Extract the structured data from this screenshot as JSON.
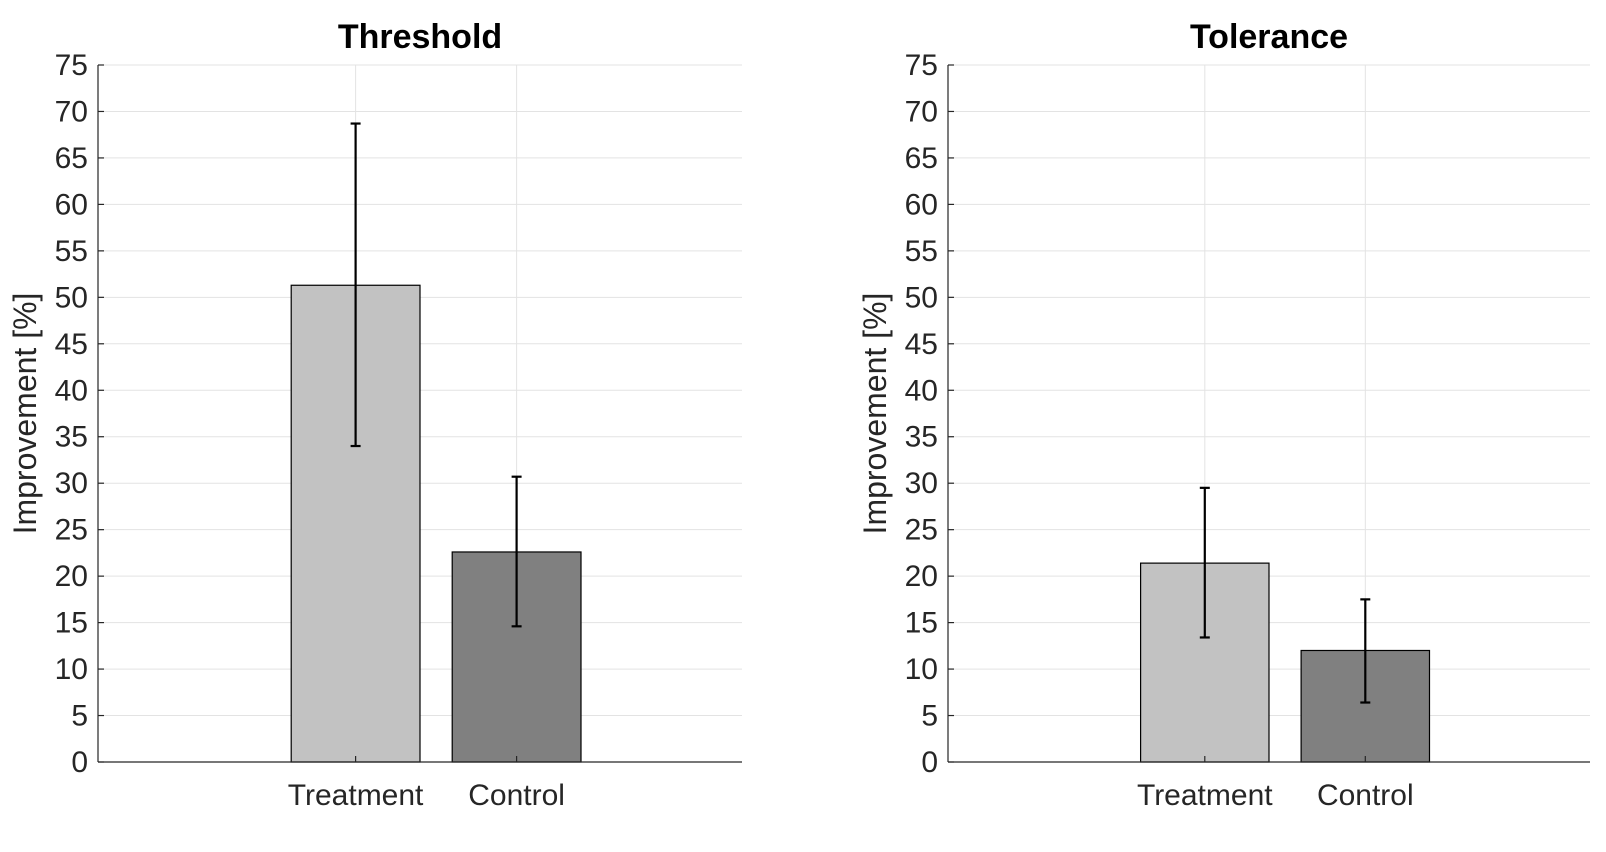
{
  "chart_data": [
    {
      "type": "bar",
      "title": "Threshold",
      "ylabel": "Improvement [%]",
      "xlabel": "",
      "ylim": [
        0,
        75
      ],
      "yticks": [
        0,
        5,
        10,
        15,
        20,
        25,
        30,
        35,
        40,
        45,
        50,
        55,
        60,
        65,
        70,
        75
      ],
      "xlim": [
        0,
        4
      ],
      "category_positions": [
        1.6,
        2.6
      ],
      "categories": [
        "Treatment",
        "Control"
      ],
      "values": [
        51.3,
        22.6
      ],
      "error_low": [
        34.0,
        14.6
      ],
      "error_high": [
        68.7,
        30.7
      ],
      "bar_colors": [
        "#c2c2c2",
        "#808080"
      ],
      "grid": true
    },
    {
      "type": "bar",
      "title": "Tolerance",
      "ylabel": "Improvement [%]",
      "xlabel": "",
      "ylim": [
        0,
        75
      ],
      "yticks": [
        0,
        5,
        10,
        15,
        20,
        25,
        30,
        35,
        40,
        45,
        50,
        55,
        60,
        65,
        70,
        75
      ],
      "xlim": [
        0,
        4
      ],
      "category_positions": [
        1.6,
        2.6
      ],
      "categories": [
        "Treatment",
        "Control"
      ],
      "values": [
        21.4,
        12.0
      ],
      "error_low": [
        13.4,
        6.4
      ],
      "error_high": [
        29.5,
        17.5
      ],
      "bar_colors": [
        "#c2c2c2",
        "#808080"
      ],
      "grid": true
    }
  ]
}
